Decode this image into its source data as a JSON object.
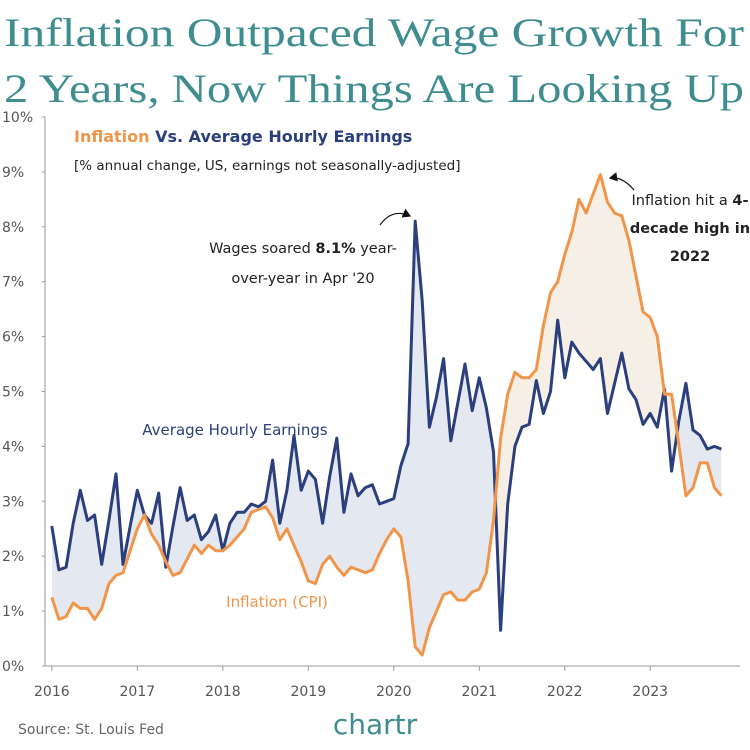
{
  "chart_data": {
    "type": "line",
    "title": [
      "Inflation Outpaced Wage Growth For",
      "2 Years, Now Things Are Looking Up"
    ],
    "heading": [
      "Inflation",
      "Vs.",
      "Average Hourly Earnings"
    ],
    "subtitle": "[% annual change, US, earnings not seasonally-adjusted]",
    "source": "Source: St. Louis Fed",
    "brand": "chartr",
    "annotations": [
      {
        "lines": [
          [
            "Wages soared ",
            "8.1%",
            " year-"
          ],
          [
            "over-year in Apr '20"
          ]
        ]
      },
      {
        "lines": [
          [
            "Inflation hit a ",
            "4-"
          ],
          [
            "decade high in"
          ],
          [
            "2022"
          ]
        ]
      }
    ],
    "x": [
      2016,
      2016.083,
      2016.167,
      2016.25,
      2016.333,
      2016.417,
      2016.5,
      2016.583,
      2016.667,
      2016.75,
      2016.833,
      2016.917,
      2017,
      2017.083,
      2017.167,
      2017.25,
      2017.333,
      2017.417,
      2017.5,
      2017.583,
      2017.667,
      2017.75,
      2017.833,
      2017.917,
      2018,
      2018.083,
      2018.167,
      2018.25,
      2018.333,
      2018.417,
      2018.5,
      2018.583,
      2018.667,
      2018.75,
      2018.833,
      2018.917,
      2019,
      2019.083,
      2019.167,
      2019.25,
      2019.333,
      2019.417,
      2019.5,
      2019.583,
      2019.667,
      2019.75,
      2019.833,
      2019.917,
      2020,
      2020.083,
      2020.167,
      2020.25,
      2020.333,
      2020.417,
      2020.5,
      2020.583,
      2020.667,
      2020.75,
      2020.833,
      2020.917,
      2021,
      2021.083,
      2021.167,
      2021.25,
      2021.333,
      2021.417,
      2021.5,
      2021.583,
      2021.667,
      2021.75,
      2021.833,
      2021.917,
      2022,
      2022.083,
      2022.167,
      2022.25,
      2022.333,
      2022.417,
      2022.5,
      2022.583,
      2022.667,
      2022.75,
      2022.833,
      2022.917,
      2023,
      2023.083,
      2023.167,
      2023.25,
      2023.333,
      2023.417,
      2023.5,
      2023.583,
      2023.667,
      2023.75,
      2023.833
    ],
    "series": [
      {
        "name": "Average Hourly Earnings",
        "color": "#2b3f7d",
        "fill": "#e4e8f0",
        "values": [
          2.55,
          1.75,
          1.8,
          2.6,
          3.2,
          2.65,
          2.75,
          1.85,
          2.65,
          3.5,
          1.85,
          2.55,
          3.2,
          2.75,
          2.6,
          3.15,
          1.8,
          2.55,
          3.25,
          2.65,
          2.75,
          2.3,
          2.45,
          2.75,
          2.1,
          2.6,
          2.8,
          2.8,
          2.95,
          2.9,
          3.0,
          3.75,
          2.6,
          3.2,
          4.2,
          3.2,
          3.55,
          3.4,
          2.6,
          3.45,
          4.15,
          2.8,
          3.5,
          3.1,
          3.25,
          3.3,
          2.95,
          3.0,
          3.05,
          3.65,
          4.05,
          8.1,
          6.65,
          4.35,
          4.9,
          5.6,
          4.1,
          4.8,
          5.5,
          4.65,
          5.25,
          4.7,
          3.9,
          0.65,
          2.95,
          4.0,
          4.35,
          4.4,
          5.2,
          4.6,
          5.0,
          6.3,
          5.25,
          5.9,
          5.7,
          5.55,
          5.4,
          5.6,
          4.6,
          5.15,
          5.7,
          5.05,
          4.85,
          4.4,
          4.6,
          4.35,
          5.05,
          3.55,
          4.45,
          5.15,
          4.3,
          4.2,
          3.95,
          4.0,
          3.95
        ]
      },
      {
        "name": "Inflation (CPI)",
        "color": "#f0954a",
        "fill": "#f6efe6",
        "values": [
          1.25,
          0.85,
          0.9,
          1.15,
          1.05,
          1.05,
          0.85,
          1.05,
          1.5,
          1.65,
          1.7,
          2.1,
          2.5,
          2.75,
          2.4,
          2.2,
          1.9,
          1.65,
          1.7,
          1.95,
          2.2,
          2.05,
          2.2,
          2.1,
          2.1,
          2.2,
          2.35,
          2.5,
          2.8,
          2.85,
          2.9,
          2.7,
          2.3,
          2.5,
          2.2,
          1.9,
          1.55,
          1.5,
          1.85,
          2.0,
          1.8,
          1.65,
          1.8,
          1.75,
          1.7,
          1.75,
          2.05,
          2.3,
          2.5,
          2.35,
          1.55,
          0.35,
          0.2,
          0.7,
          1.0,
          1.3,
          1.35,
          1.2,
          1.2,
          1.35,
          1.4,
          1.7,
          2.65,
          4.15,
          4.95,
          5.35,
          5.25,
          5.25,
          5.4,
          6.2,
          6.8,
          7.0,
          7.5,
          7.9,
          8.5,
          8.25,
          8.6,
          8.95,
          8.45,
          8.25,
          8.2,
          7.75,
          7.1,
          6.45,
          6.35,
          6.0,
          4.95,
          4.95,
          4.05,
          3.1,
          3.25,
          3.7,
          3.7,
          3.25,
          3.1
        ]
      }
    ],
    "xlim": [
      2015.92,
      2024.05
    ],
    "xticks": [
      2016,
      2017,
      2018,
      2019,
      2020,
      2021,
      2022,
      2023
    ],
    "ylim": [
      0,
      10
    ],
    "yticks": [
      {
        "value": 0,
        "label": "0%"
      },
      {
        "value": 1,
        "label": "1%"
      },
      {
        "value": 2,
        "label": "2%"
      },
      {
        "value": 3,
        "label": "3%"
      },
      {
        "value": 4,
        "label": "4%"
      },
      {
        "value": 5,
        "label": "5%"
      },
      {
        "value": 6,
        "label": "6%"
      },
      {
        "value": 7,
        "label": "7%"
      },
      {
        "value": 8,
        "label": "8%"
      },
      {
        "value": 9,
        "label": "9%"
      },
      {
        "value": 10,
        "label": "10%"
      }
    ],
    "grid": false
  }
}
